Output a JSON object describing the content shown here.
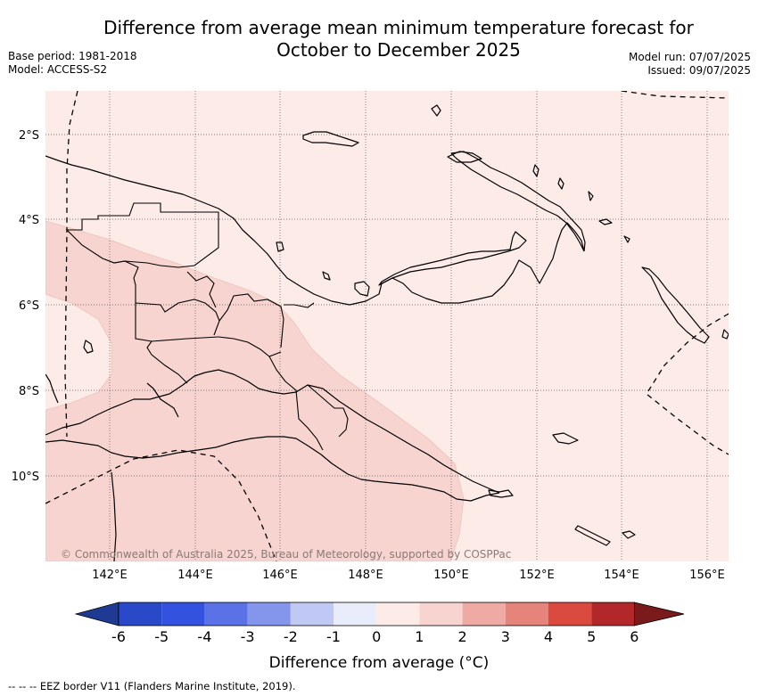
{
  "title": {
    "line1": "Difference from average mean minimum temperature forecast for",
    "line2": "October to December 2025"
  },
  "meta": {
    "base_period": "Base period: 1981-2018",
    "model": "Model: ACCESS-S2",
    "model_run": "Model run: 07/07/2025",
    "issued": "Issued: 09/07/2025"
  },
  "map": {
    "copyright": "© Commonwealth of Australia 2025, Bureau of Meteorology, supported by COSPPac",
    "lat_labels": [
      "2°S",
      "4°S",
      "6°S",
      "8°S",
      "10°S"
    ],
    "lon_labels": [
      "142°E",
      "144°E",
      "146°E",
      "148°E",
      "150°E",
      "152°E",
      "154°E",
      "156°E"
    ],
    "region": "Papua New Guinea",
    "dominant_anomaly_band": "0 to 1",
    "warmer_anomaly_band": "1 to 2",
    "colors": {
      "band_0_1": "#fdebe7",
      "band_1_2": "#f7d4cf",
      "coast": "#000000",
      "eez": "#000000"
    }
  },
  "colorbar": {
    "ticks": [
      "-6",
      "-5",
      "-4",
      "-3",
      "-2",
      "-1",
      "0",
      "1",
      "2",
      "3",
      "4",
      "5",
      "6"
    ],
    "colors": [
      "#1f3a93",
      "#2a49c8",
      "#3352e0",
      "#5a72e6",
      "#8496ec",
      "#c0c8f4",
      "#e8ecfb",
      "#fdebe7",
      "#f7d4cf",
      "#efaaa3",
      "#e5847a",
      "#da4a3f",
      "#b2282a",
      "#7a1a1a"
    ],
    "label": "Difference from average (°C)"
  },
  "legend": {
    "eez": "-- -- -- EEZ border V11 (Flanders Marine Institute, 2019)."
  }
}
